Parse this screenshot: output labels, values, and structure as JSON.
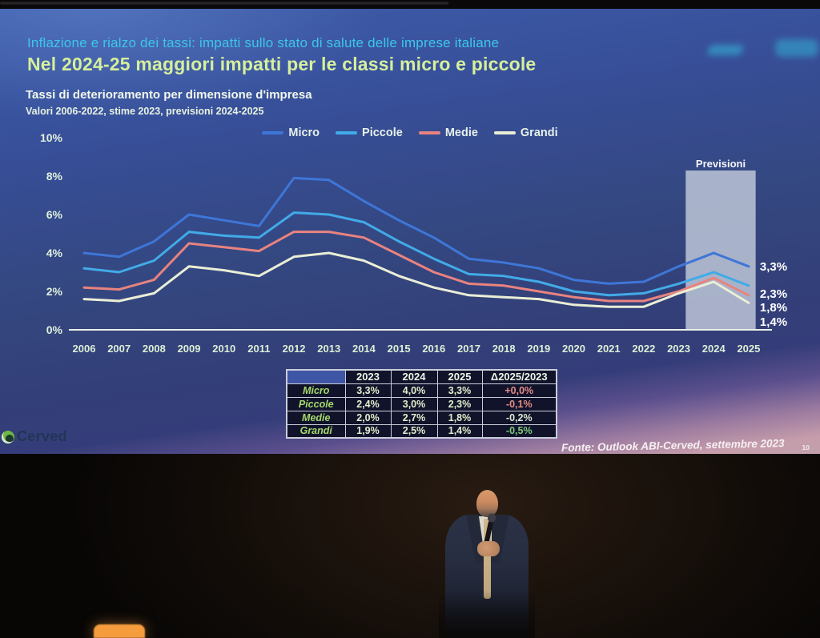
{
  "slide": {
    "kicker": "Inflazione e rialzo dei tassi: impatti sullo stato di salute delle imprese italiane",
    "headline": "Nel 2024-25 maggiori impatti per le classi micro e piccole",
    "subtitle": "Tassi di deterioramento per dimensione d'impresa",
    "subnote": "Valori 2006-2022, stime 2023, previsioni 2024-2025"
  },
  "chart_data": {
    "type": "line",
    "title": "Tassi di deterioramento per dimensione d'impresa",
    "categories": [
      "2006",
      "2007",
      "2008",
      "2009",
      "2010",
      "2011",
      "2012",
      "2013",
      "2014",
      "2015",
      "2016",
      "2017",
      "2018",
      "2019",
      "2020",
      "2021",
      "2022",
      "2023",
      "2024",
      "2025"
    ],
    "series": [
      {
        "name": "Micro",
        "color": "#3e76d8",
        "values": [
          4.0,
          3.8,
          4.6,
          6.0,
          5.7,
          5.4,
          7.9,
          7.8,
          6.7,
          5.7,
          4.8,
          3.7,
          3.5,
          3.2,
          2.6,
          2.4,
          2.5,
          3.3,
          4.0,
          3.3
        ]
      },
      {
        "name": "Piccole",
        "color": "#41abe8",
        "values": [
          3.2,
          3.0,
          3.6,
          5.1,
          4.9,
          4.8,
          6.1,
          6.0,
          5.6,
          4.6,
          3.7,
          2.9,
          2.8,
          2.5,
          2.0,
          1.8,
          1.9,
          2.4,
          3.0,
          2.3
        ]
      },
      {
        "name": "Medie",
        "color": "#e8837f",
        "values": [
          2.2,
          2.1,
          2.6,
          4.5,
          4.3,
          4.1,
          5.1,
          5.1,
          4.8,
          3.9,
          3.0,
          2.4,
          2.3,
          2.0,
          1.7,
          1.5,
          1.5,
          2.0,
          2.7,
          1.8
        ]
      },
      {
        "name": "Grandi",
        "color": "#eaeed6",
        "values": [
          1.6,
          1.5,
          1.9,
          3.3,
          3.1,
          2.8,
          3.8,
          4.0,
          3.6,
          2.8,
          2.2,
          1.8,
          1.7,
          1.6,
          1.3,
          1.2,
          1.2,
          1.9,
          2.5,
          1.4
        ]
      }
    ],
    "y_ticks": [
      {
        "label": "10%",
        "value": 10
      },
      {
        "label": "8%",
        "value": 8
      },
      {
        "label": "6%",
        "value": 6
      },
      {
        "label": "4%",
        "value": 4
      },
      {
        "label": "2%",
        "value": 2
      },
      {
        "label": "0%",
        "value": 0
      }
    ],
    "ylim": [
      0,
      10
    ],
    "grid": false,
    "legend_position": "top",
    "forecast_band": {
      "label": "Previsioni",
      "from_year": 2023.2,
      "to_year": 2025.2
    },
    "end_labels": [
      "3,3%",
      "2,3%",
      "1,8%",
      "1,4%"
    ]
  },
  "table": {
    "columns": [
      "",
      "2023",
      "2024",
      "2025",
      "Δ2025/2023"
    ],
    "rows": [
      {
        "label": "Micro",
        "values": [
          "3,3%",
          "4,0%",
          "3,3%"
        ],
        "delta": "+0,0%",
        "delta_color": "#e78b85"
      },
      {
        "label": "Piccole",
        "values": [
          "2,4%",
          "3,0%",
          "2,3%"
        ],
        "delta": "-0,1%",
        "delta_color": "#e78b85"
      },
      {
        "label": "Medie",
        "values": [
          "2,0%",
          "2,7%",
          "1,8%"
        ],
        "delta": "-0,2%",
        "delta_color": "#dcead2"
      },
      {
        "label": "Grandi",
        "values": [
          "1,9%",
          "2,5%",
          "1,4%"
        ],
        "delta": "-0,5%",
        "delta_color": "#7fc97c"
      }
    ]
  },
  "footer": {
    "logo_text": "Cerved",
    "source": "Fonte: Outlook ABI-Cerved, settembre 2023",
    "page_number": "10"
  },
  "colors": {
    "screen_blue": "#36498c",
    "accent_cyan": "#3cc7ec",
    "accent_green": "#d6ef9b",
    "forecast_band_fill": "rgba(197,206,221,0.8)"
  }
}
